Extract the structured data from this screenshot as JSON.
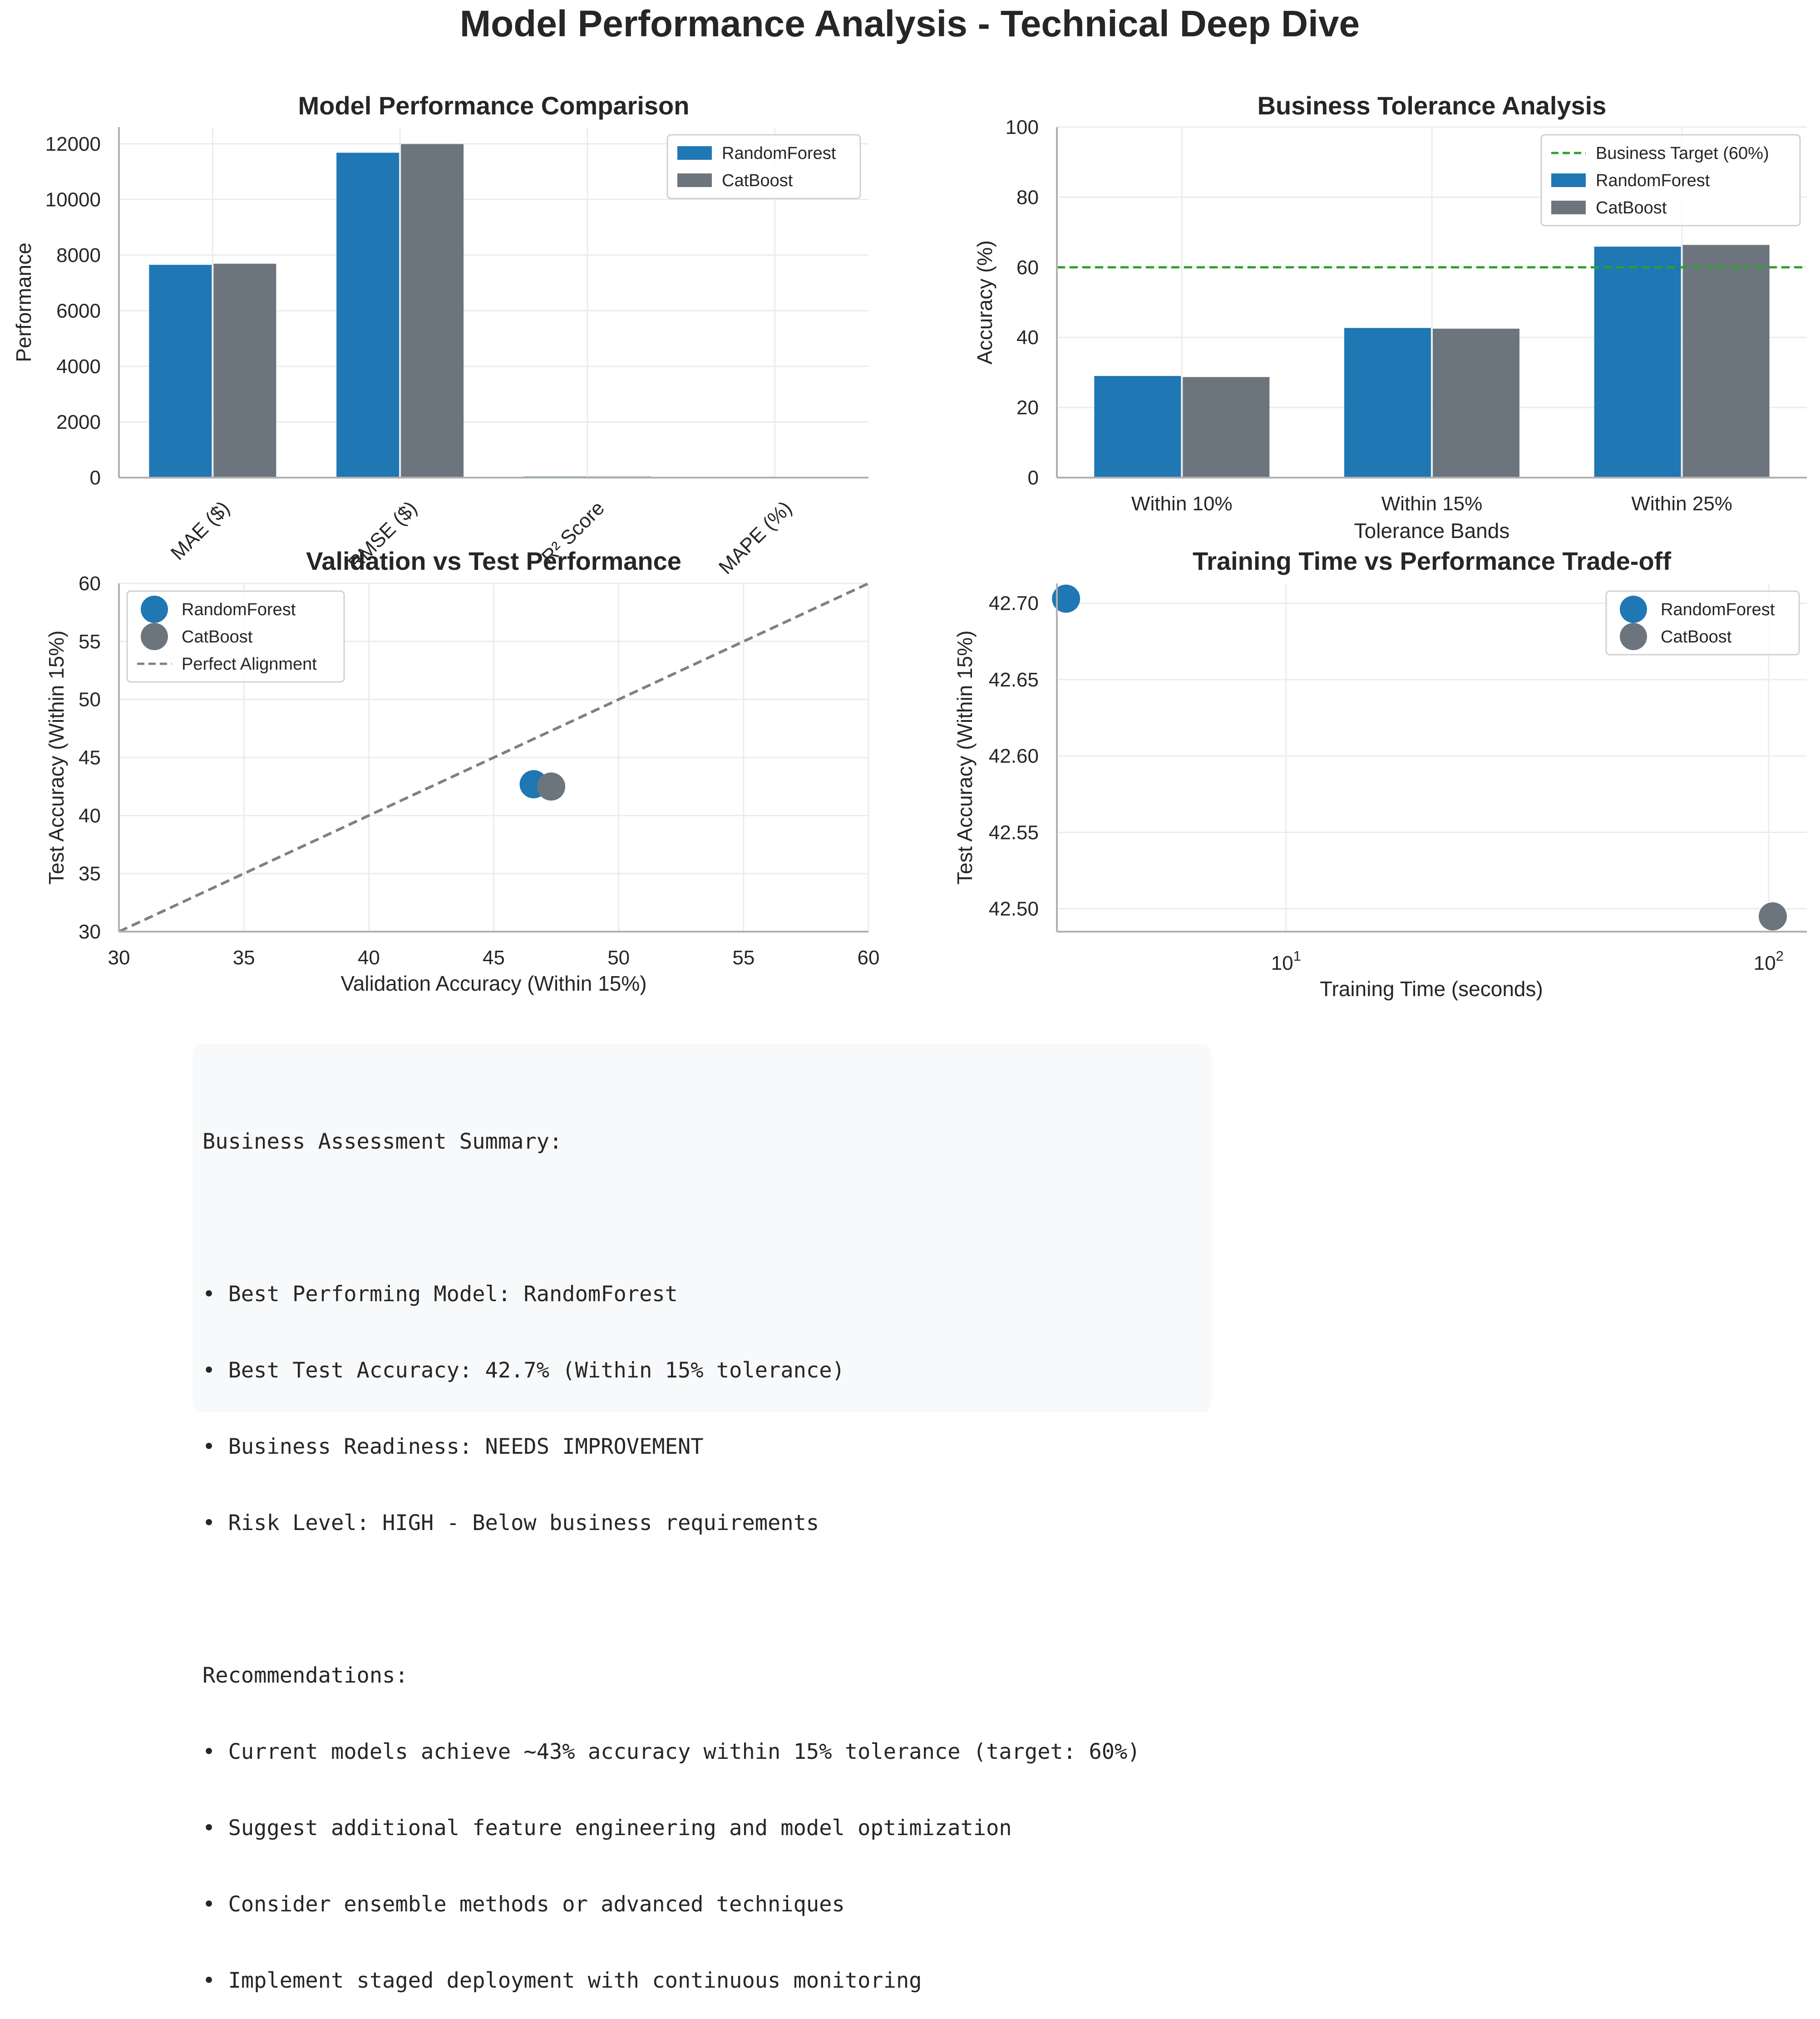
{
  "figure": {
    "title": "Model Performance Analysis - Technical Deep Dive"
  },
  "colors": {
    "RandomForest": "#1f77b4",
    "CatBoost": "#6c757d",
    "target_line": "#2ca02c",
    "alignment_line": "#808080",
    "grid": "#ececec",
    "axis": "#b0b0b0",
    "summary_bg": "#f8f9fa"
  },
  "chart_data": [
    {
      "id": "performance",
      "type": "bar",
      "title": "Model Performance Comparison",
      "xlabel": "",
      "ylabel": "Performance",
      "categories": [
        "MAE ($)",
        "RMSE ($)",
        "R² Score",
        "MAPE (%)"
      ],
      "series": [
        {
          "name": "RandomForest",
          "values": [
            7650,
            11680,
            42,
            0
          ]
        },
        {
          "name": "CatBoost",
          "values": [
            7690,
            11990,
            41,
            0
          ]
        }
      ],
      "ylim": [
        0,
        12600
      ],
      "yticks": [
        0,
        2000,
        4000,
        6000,
        8000,
        10000,
        12000
      ],
      "grid": true,
      "legend": "top-right"
    },
    {
      "id": "tolerance",
      "type": "bar",
      "title": "Business Tolerance Analysis",
      "xlabel": "Tolerance Bands",
      "ylabel": "Accuracy (%)",
      "categories": [
        "Within 10%",
        "Within 15%",
        "Within 25%"
      ],
      "series": [
        {
          "name": "RandomForest",
          "values": [
            29.0,
            42.7,
            65.9
          ]
        },
        {
          "name": "CatBoost",
          "values": [
            28.7,
            42.5,
            66.4
          ]
        }
      ],
      "target": {
        "name": "Business Target (60%)",
        "value": 60
      },
      "ylim": [
        0,
        100
      ],
      "yticks": [
        0,
        20,
        40,
        60,
        80,
        100
      ],
      "grid": true,
      "legend": "top-right"
    },
    {
      "id": "validation",
      "type": "scatter",
      "title": "Validation vs Test Performance",
      "xlabel": "Validation Accuracy (Within 15%)",
      "ylabel": "Test Accuracy (Within 15%)",
      "series": [
        {
          "name": "RandomForest",
          "x": 46.6,
          "y": 42.7
        },
        {
          "name": "CatBoost",
          "x": 47.3,
          "y": 42.5
        }
      ],
      "reference_line": {
        "name": "Perfect Alignment",
        "from": [
          30,
          30
        ],
        "to": [
          60,
          60
        ]
      },
      "xlim": [
        30,
        60
      ],
      "ylim": [
        30,
        60
      ],
      "xticks": [
        30,
        35,
        40,
        45,
        50,
        55,
        60
      ],
      "yticks": [
        30,
        35,
        40,
        45,
        50,
        55,
        60
      ],
      "grid": true,
      "legend": "top-left"
    },
    {
      "id": "training",
      "type": "scatter",
      "title": "Training Time vs Performance Trade-off",
      "xlabel": "Training Time (seconds)",
      "ylabel": "Test Accuracy (Within 15%)",
      "xscale": "log",
      "series": [
        {
          "name": "RandomForest",
          "x": 3.5,
          "y": 42.703
        },
        {
          "name": "CatBoost",
          "x": 102,
          "y": 42.495
        }
      ],
      "xlim": [
        3.35,
        120
      ],
      "ylim": [
        42.485,
        42.713
      ],
      "xticks": [
        {
          "value": 10,
          "base": "10",
          "exp": "1"
        },
        {
          "value": 100,
          "base": "10",
          "exp": "2"
        }
      ],
      "yticks": [
        {
          "value": 42.5,
          "label": "42.50"
        },
        {
          "value": 42.55,
          "label": "42.55"
        },
        {
          "value": 42.6,
          "label": "42.60"
        },
        {
          "value": 42.65,
          "label": "42.65"
        },
        {
          "value": 42.7,
          "label": "42.70"
        }
      ],
      "grid": true,
      "legend": "top-right"
    }
  ],
  "summary": {
    "heading": "Business Assessment Summary:",
    "points": [
      "• Best Performing Model: RandomForest",
      "• Best Test Accuracy: 42.7% (Within 15% tolerance)",
      "• Business Readiness: NEEDS IMPROVEMENT",
      "• Risk Level: HIGH - Below business requirements"
    ],
    "rec_heading": "Recommendations:",
    "recommendations": [
      "• Current models achieve ~43% accuracy within 15% tolerance (target: 60%)",
      "• Suggest additional feature engineering and model optimization",
      "• Consider ensemble methods or advanced techniques",
      "• Implement staged deployment with continuous monitoring"
    ]
  }
}
